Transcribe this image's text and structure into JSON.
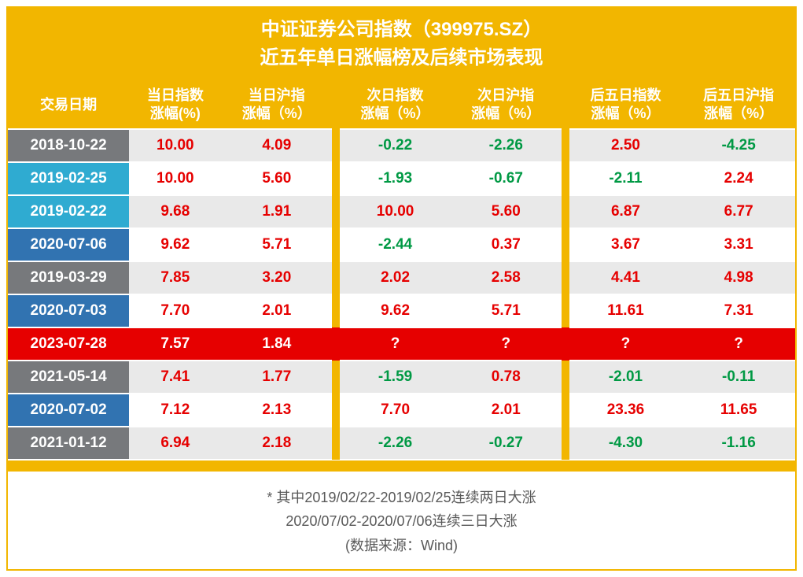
{
  "title": {
    "line1": "中证证券公司指数（399975.SZ）",
    "line2": "近五年单日涨幅榜及后续市场表现",
    "color": "#ffffff",
    "background": "#f2b600",
    "fontsize": 24
  },
  "theme": {
    "border_color": "#f2b600",
    "gap_color": "#f2b600",
    "header_bg": "#f2b600",
    "header_fg": "#ffffff",
    "positive_color": "#e60000",
    "negative_color": "#009944",
    "highlight_row_bg": "#e60000",
    "highlight_row_fg": "#ffffff",
    "date_colors_palette": [
      "#77797c",
      "#2fabd1",
      "#3173b1"
    ],
    "row_alt_bg": "#e9e9e9",
    "row_base_bg": "#ffffff",
    "footer_text_color": "#595959",
    "cell_fontsize": 19,
    "header_fontsize": 18
  },
  "columns": [
    {
      "key": "date",
      "label": "交易日期"
    },
    {
      "key": "c1",
      "label": "当日指数\n涨幅(%)"
    },
    {
      "key": "c2",
      "label": "当日沪指\n涨幅（%）"
    },
    {
      "key": "c3",
      "label": "次日指数\n涨幅（%）"
    },
    {
      "key": "c4",
      "label": "次日沪指\n涨幅（%）"
    },
    {
      "key": "c5",
      "label": "后五日指数\n涨幅（%）"
    },
    {
      "key": "c6",
      "label": "后五日沪指\n涨幅（%）"
    }
  ],
  "column_groups": [
    [
      "date",
      "c1",
      "c2"
    ],
    [
      "c3",
      "c4"
    ],
    [
      "c5",
      "c6"
    ]
  ],
  "rows": [
    {
      "date": "2018-10-22",
      "date_bg": "#77797c",
      "alt_bg": "#e9e9e9",
      "highlight": false,
      "c1": "10.00",
      "c2": "4.09",
      "c3": "-0.22",
      "c4": "-2.26",
      "c5": "2.50",
      "c6": "-4.25"
    },
    {
      "date": "2019-02-25",
      "date_bg": "#2fabd1",
      "alt_bg": "#ffffff",
      "highlight": false,
      "c1": "10.00",
      "c2": "5.60",
      "c3": "-1.93",
      "c4": "-0.67",
      "c5": "-2.11",
      "c6": "2.24"
    },
    {
      "date": "2019-02-22",
      "date_bg": "#2fabd1",
      "alt_bg": "#e9e9e9",
      "highlight": false,
      "c1": "9.68",
      "c2": "1.91",
      "c3": "10.00",
      "c4": "5.60",
      "c5": "6.87",
      "c6": "6.77"
    },
    {
      "date": "2020-07-06",
      "date_bg": "#3173b1",
      "alt_bg": "#ffffff",
      "highlight": false,
      "c1": "9.62",
      "c2": "5.71",
      "c3": "-2.44",
      "c4": "0.37",
      "c5": "3.67",
      "c6": "3.31"
    },
    {
      "date": "2019-03-29",
      "date_bg": "#77797c",
      "alt_bg": "#e9e9e9",
      "highlight": false,
      "c1": "7.85",
      "c2": "3.20",
      "c3": "2.02",
      "c4": "2.58",
      "c5": "4.41",
      "c6": "4.98"
    },
    {
      "date": "2020-07-03",
      "date_bg": "#3173b1",
      "alt_bg": "#ffffff",
      "highlight": false,
      "c1": "7.70",
      "c2": "2.01",
      "c3": "9.62",
      "c4": "5.71",
      "c5": "11.61",
      "c6": "7.31"
    },
    {
      "date": "2023-07-28",
      "date_bg": "#e60000",
      "alt_bg": "#e60000",
      "highlight": true,
      "c1": "7.57",
      "c2": "1.84",
      "c3": "?",
      "c4": "?",
      "c5": "?",
      "c6": "?"
    },
    {
      "date": "2021-05-14",
      "date_bg": "#77797c",
      "alt_bg": "#e9e9e9",
      "highlight": false,
      "c1": "7.41",
      "c2": "1.77",
      "c3": "-1.59",
      "c4": "0.78",
      "c5": "-2.01",
      "c6": "-0.11"
    },
    {
      "date": "2020-07-02",
      "date_bg": "#3173b1",
      "alt_bg": "#ffffff",
      "highlight": false,
      "c1": "7.12",
      "c2": "2.13",
      "c3": "7.70",
      "c4": "2.01",
      "c5": "23.36",
      "c6": "11.65"
    },
    {
      "date": "2021-01-12",
      "date_bg": "#77797c",
      "alt_bg": "#e9e9e9",
      "highlight": false,
      "c1": "6.94",
      "c2": "2.18",
      "c3": "-2.26",
      "c4": "-0.27",
      "c5": "-4.30",
      "c6": "-1.16"
    }
  ],
  "footer": {
    "line1": "* 其中2019/02/22-2019/02/25连续两日大涨",
    "line2": "2020/07/02-2020/07/06连续三日大涨",
    "line3": "(数据来源：Wind)"
  }
}
